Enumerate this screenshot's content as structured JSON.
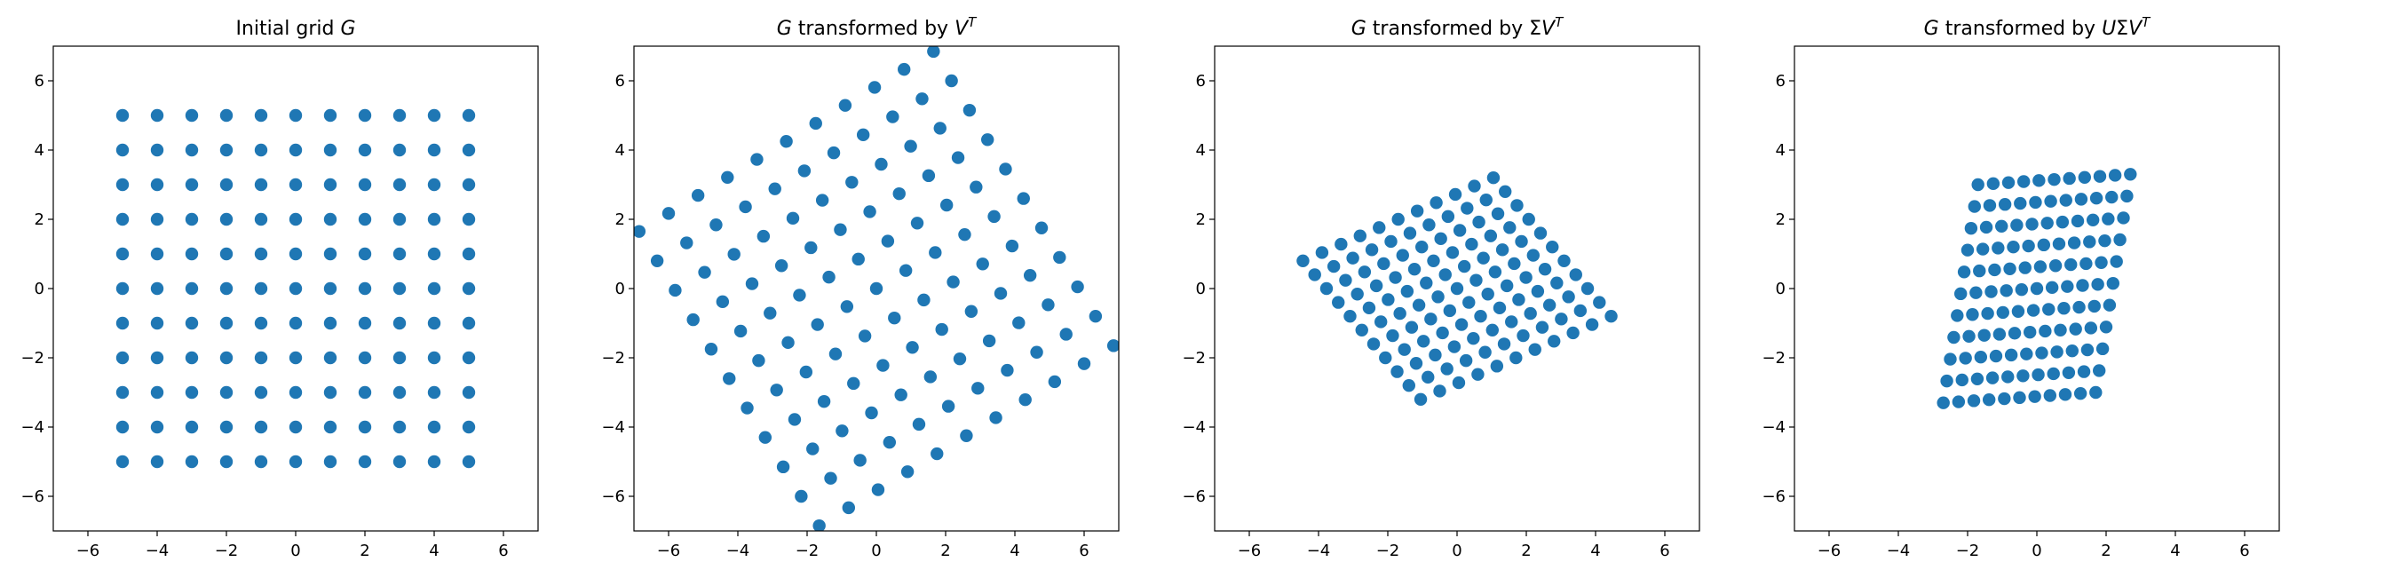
{
  "figure": {
    "background": "#ffffff",
    "marker_color": "#1f77b4"
  },
  "chart_data": [
    {
      "type": "scatter",
      "title": {
        "prefix": "Initial grid ",
        "math": "G",
        "sup": ""
      },
      "xlim": [
        -7,
        7
      ],
      "ylim": [
        -7,
        7
      ],
      "xticks": [
        -6,
        -4,
        -2,
        0,
        2,
        4,
        6
      ],
      "yticks": [
        -6,
        -4,
        -2,
        0,
        2,
        4,
        6
      ],
      "grid": false,
      "matrix": [
        [
          1,
          0
        ],
        [
          0,
          1
        ]
      ]
    },
    {
      "type": "scatter",
      "title": {
        "prefix": "",
        "math": "G",
        "mid": " transformed by ",
        "math2": "V",
        "sup": "T"
      },
      "xlim": [
        -7,
        7
      ],
      "ylim": [
        -7,
        7
      ],
      "xticks": [
        -6,
        -4,
        -2,
        0,
        2,
        4,
        6
      ],
      "yticks": [
        -6,
        -4,
        -2,
        0,
        2,
        4,
        6
      ],
      "grid": false,
      "matrix": [
        [
          0.52,
          0.85
        ],
        [
          -0.85,
          0.52
        ]
      ]
    },
    {
      "type": "scatter",
      "title": {
        "prefix": "",
        "math": "G",
        "mid": " transformed by ",
        "math2": "ΣV",
        "sup": "T"
      },
      "xlim": [
        -7,
        7
      ],
      "ylim": [
        -7,
        7
      ],
      "xticks": [
        -6,
        -4,
        -2,
        0,
        2,
        4,
        6
      ],
      "yticks": [
        -6,
        -4,
        -2,
        0,
        2,
        4,
        6
      ],
      "grid": false,
      "matrix": [
        [
          0.34,
          0.55
        ],
        [
          -0.4,
          0.24
        ]
      ]
    },
    {
      "type": "scatter",
      "title": {
        "prefix": "",
        "math": "G",
        "mid": " transformed by ",
        "math2": "UΣV",
        "sup": "T"
      },
      "xlim": [
        -7,
        7
      ],
      "ylim": [
        -7,
        7
      ],
      "xticks": [
        -6,
        -4,
        -2,
        0,
        2,
        4,
        6
      ],
      "yticks": [
        -6,
        -4,
        -2,
        0,
        2,
        4,
        6
      ],
      "grid": false,
      "matrix": [
        [
          0.44,
          0.1
        ],
        [
          0.03,
          0.63
        ]
      ]
    }
  ],
  "grid_points": {
    "x_range": [
      -5,
      5
    ],
    "y_range": [
      -5,
      5
    ],
    "step": 1
  }
}
